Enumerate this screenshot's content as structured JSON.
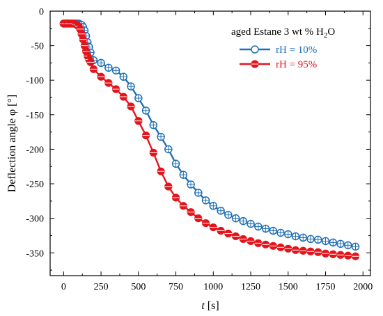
{
  "chart_data": {
    "type": "line",
    "xlabel": {
      "var": "t",
      "unit": " [s]"
    },
    "ylabel": "Deflection angle φ [°]",
    "xlim": [
      -90,
      2050
    ],
    "ylim": [
      -383,
      0
    ],
    "x_ticks": [
      0,
      250,
      500,
      750,
      1000,
      1250,
      1500,
      1750,
      2000
    ],
    "y_ticks": [
      0,
      -50,
      -100,
      -150,
      -200,
      -250,
      -300,
      -350
    ],
    "grid": false,
    "legend": {
      "title": {
        "main": "aged Estane 3 wt % H",
        "sub": "2",
        "tail": "O"
      },
      "position": "top-right"
    },
    "series": [
      {
        "name": "rH = 10%",
        "color": "#1f6fb5",
        "x": [
          0,
          10,
          20,
          30,
          40,
          50,
          60,
          70,
          80,
          90,
          100,
          110,
          120,
          130,
          140,
          150,
          160,
          170,
          180,
          200,
          250,
          300,
          350,
          400,
          450,
          500,
          550,
          600,
          650,
          700,
          750,
          800,
          850,
          900,
          950,
          1000,
          1050,
          1100,
          1150,
          1200,
          1250,
          1300,
          1350,
          1400,
          1450,
          1500,
          1550,
          1600,
          1650,
          1700,
          1750,
          1800,
          1850,
          1900,
          1950
        ],
        "y": [
          -18,
          -18,
          -18,
          -18,
          -18,
          -18,
          -18,
          -18,
          -18,
          -18,
          -18,
          -19,
          -20,
          -23,
          -28,
          -36,
          -45,
          -52,
          -60,
          -71,
          -75,
          -82,
          -86,
          -95,
          -109,
          -126,
          -144,
          -165,
          -182,
          -200,
          -221,
          -237,
          -251,
          -263,
          -274,
          -282,
          -289,
          -295,
          -300,
          -304,
          -308,
          -312,
          -315,
          -318,
          -321,
          -323,
          -326,
          -328,
          -330,
          -331,
          -333,
          -335,
          -337,
          -339,
          -341
        ]
      },
      {
        "name": "rH = 95%",
        "color": "#e4141c",
        "x": [
          0,
          10,
          20,
          30,
          40,
          50,
          60,
          70,
          80,
          90,
          100,
          110,
          120,
          130,
          140,
          150,
          160,
          170,
          180,
          200,
          250,
          300,
          350,
          400,
          450,
          500,
          550,
          600,
          650,
          700,
          750,
          800,
          850,
          900,
          950,
          1000,
          1050,
          1100,
          1150,
          1200,
          1250,
          1300,
          1350,
          1400,
          1450,
          1500,
          1550,
          1600,
          1650,
          1700,
          1750,
          1800,
          1850,
          1900,
          1950
        ],
        "y": [
          -18,
          -18,
          -18,
          -18,
          -18,
          -18,
          -18,
          -18,
          -19,
          -20,
          -22,
          -26,
          -33,
          -41,
          -50,
          -58,
          -65,
          -70,
          -74,
          -84,
          -95,
          -104,
          -113,
          -124,
          -138,
          -159,
          -180,
          -205,
          -232,
          -254,
          -270,
          -282,
          -291,
          -300,
          -307,
          -313,
          -318,
          -322,
          -326,
          -330,
          -333,
          -336,
          -338,
          -340,
          -342,
          -344,
          -346,
          -347,
          -348,
          -349,
          -351,
          -352,
          -353,
          -354,
          -355
        ]
      }
    ]
  }
}
